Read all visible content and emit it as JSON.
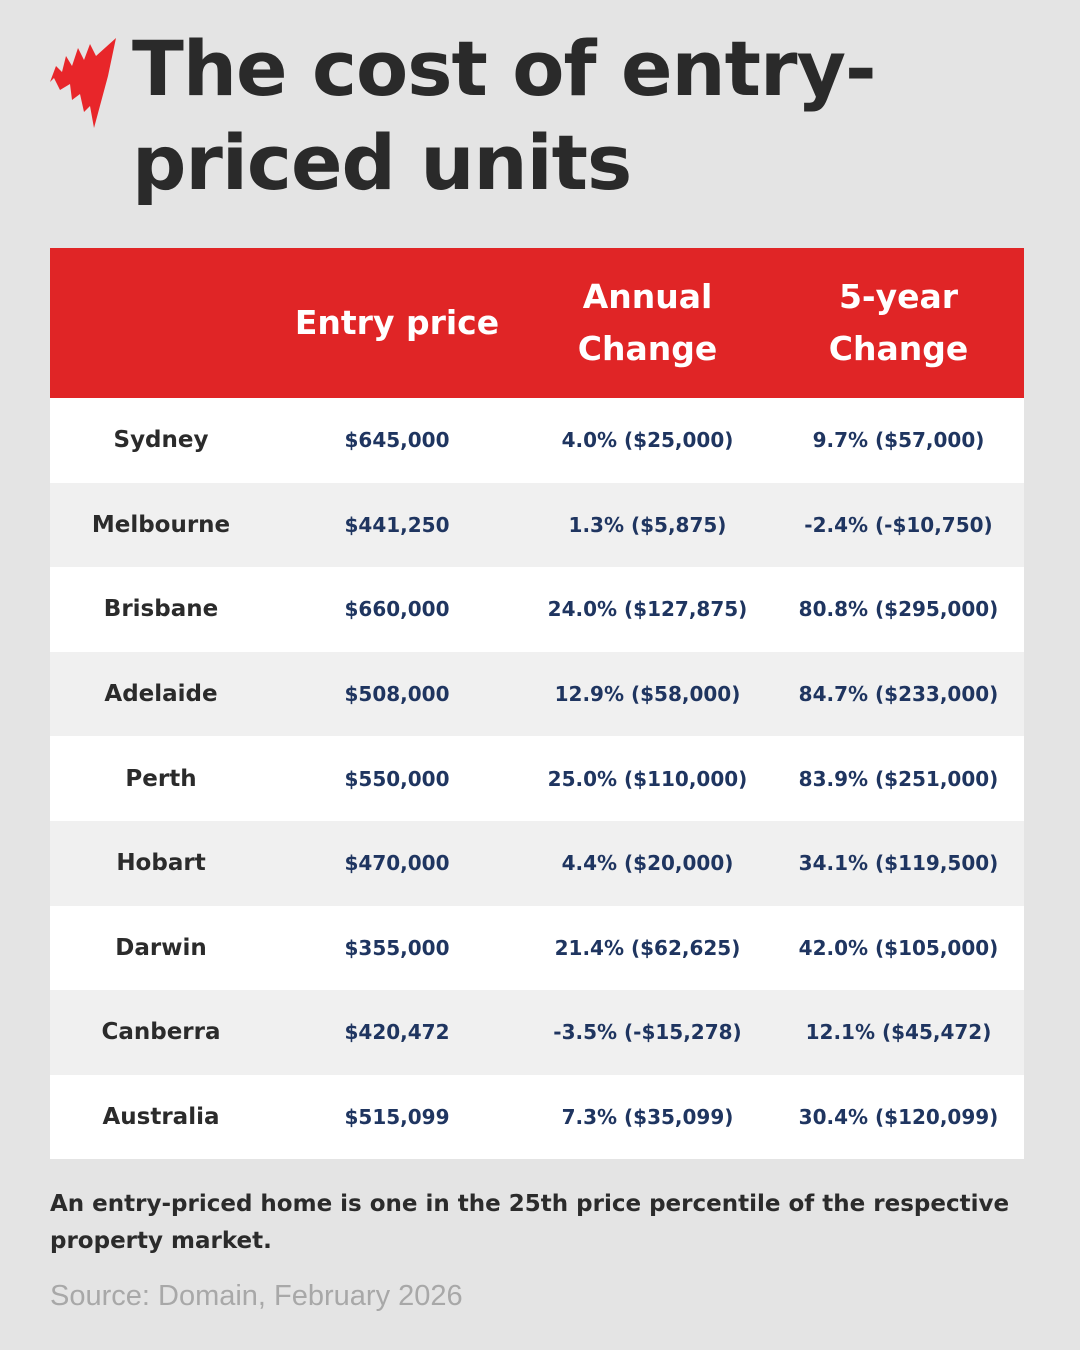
{
  "title": "The cost of entry-priced units",
  "brand_color": "#e02526",
  "chart_data": {
    "type": "table",
    "columns": [
      "",
      "Entry price",
      "Annual Change",
      "5-year Change"
    ],
    "rows": [
      {
        "city": "Sydney",
        "entry_price": "$645,000",
        "annual_change": "4.0% ($25,000)",
        "five_year_change": "9.7% ($57,000)"
      },
      {
        "city": "Melbourne",
        "entry_price": "$441,250",
        "annual_change": "1.3% ($5,875)",
        "five_year_change": "-2.4% (-$10,750)"
      },
      {
        "city": "Brisbane",
        "entry_price": "$660,000",
        "annual_change": "24.0% ($127,875)",
        "five_year_change": "80.8% ($295,000)"
      },
      {
        "city": "Adelaide",
        "entry_price": "$508,000",
        "annual_change": "12.9% ($58,000)",
        "five_year_change": "84.7% ($233,000)"
      },
      {
        "city": "Perth",
        "entry_price": "$550,000",
        "annual_change": "25.0% ($110,000)",
        "five_year_change": "83.9% ($251,000)"
      },
      {
        "city": "Hobart",
        "entry_price": "$470,000",
        "annual_change": "4.4% ($20,000)",
        "five_year_change": "34.1% ($119,500)"
      },
      {
        "city": "Darwin",
        "entry_price": "$355,000",
        "annual_change": "21.4% ($62,625)",
        "five_year_change": "42.0% ($105,000)"
      },
      {
        "city": "Canberra",
        "entry_price": "$420,472",
        "annual_change": "-3.5% (-$15,278)",
        "five_year_change": "12.1% ($45,472)"
      },
      {
        "city": "Australia",
        "entry_price": "$515,099",
        "annual_change": "7.3% ($35,099)",
        "five_year_change": "30.4% ($120,099)"
      }
    ]
  },
  "note": "An entry-priced home is one in the 25th price percentile of the respective property market.",
  "source": "Source: Domain, February 2026"
}
